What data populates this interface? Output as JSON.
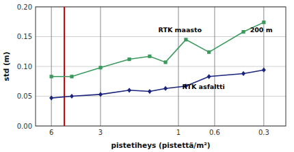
{
  "chart_data": {
    "type": "line",
    "log": "x",
    "grid": true,
    "x_label": "pistetiheys (pistettä/m²)",
    "y_label": "std (m)",
    "xlim": [
      7.5,
      0.22
    ],
    "xticks": [
      6,
      3,
      1,
      0.6,
      0.3
    ],
    "ylim": [
      0,
      0.2
    ],
    "yticks": [
      {
        "value": 0,
        "label": "0.00"
      },
      {
        "value": 0.05,
        "label": "0.05"
      },
      {
        "value": 0.1,
        "label": "0.10"
      },
      {
        "value": 0.15,
        "label": "0.15"
      },
      {
        "value": 0.2,
        "label": "0.20"
      }
    ],
    "x": [
      6,
      4.5,
      3,
      2,
      1.5,
      1.2,
      0.9,
      0.65,
      0.4,
      0.3
    ],
    "series": [
      {
        "color": "#3a9a5c",
        "marker": "square",
        "values": [
          0.083,
          0.083,
          0.098,
          0.112,
          0.117,
          0.107,
          0.145,
          0.124,
          0.158,
          0.174
        ]
      },
      {
        "color": "#1a237e",
        "marker": "diamond",
        "values": [
          0.047,
          0.05,
          0.053,
          0.06,
          0.058,
          0.063,
          0.067,
          0.083,
          0.088,
          0.094
        ]
      }
    ],
    "reference_lines": [
      {
        "x": 5.0,
        "color": "#cc0000"
      }
    ],
    "annotations": [
      {
        "text": "RTK maasto",
        "x": 0.72,
        "y": 0.157
      },
      {
        "text": "200 m",
        "x": 0.265,
        "y": 0.157
      },
      {
        "text": "RTK asfaltti",
        "x": 0.52,
        "y": 0.062
      }
    ]
  }
}
